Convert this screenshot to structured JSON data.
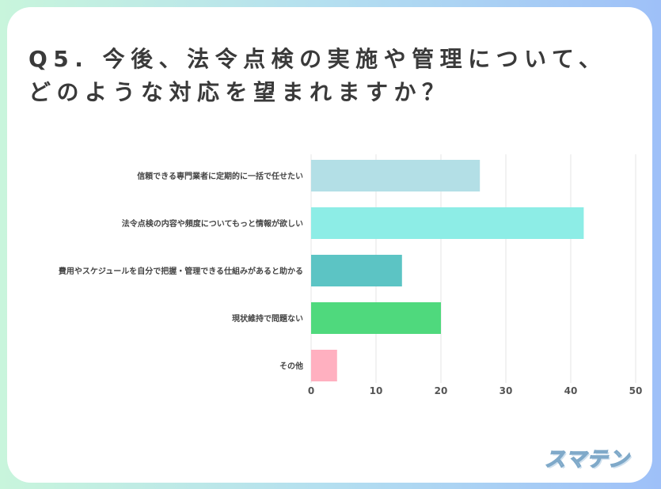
{
  "title_lines": [
    "Q5. 今後、法令点検の実施や管理について、",
    "どのような対応を望まれますか？"
  ],
  "brand": "スマテン",
  "chart_data": {
    "type": "bar",
    "orientation": "horizontal",
    "categories": [
      "信頼できる専門業者に定期的に一括で任せたい",
      "法令点検の内容や頻度についてもっと情報が欲しい",
      "費用やスケジュールを自分で把握・管理できる仕組みがあると助かる",
      "現状維持で問題ない",
      "その他"
    ],
    "values": [
      26,
      42,
      14,
      20,
      4
    ],
    "colors": [
      "#b3dfe6",
      "#8dede6",
      "#5cc4c4",
      "#4fd97d",
      "#ffb0c0"
    ],
    "xlim": [
      0,
      50
    ],
    "xticks": [
      0,
      10,
      20,
      30,
      40,
      50
    ],
    "grid": true
  }
}
